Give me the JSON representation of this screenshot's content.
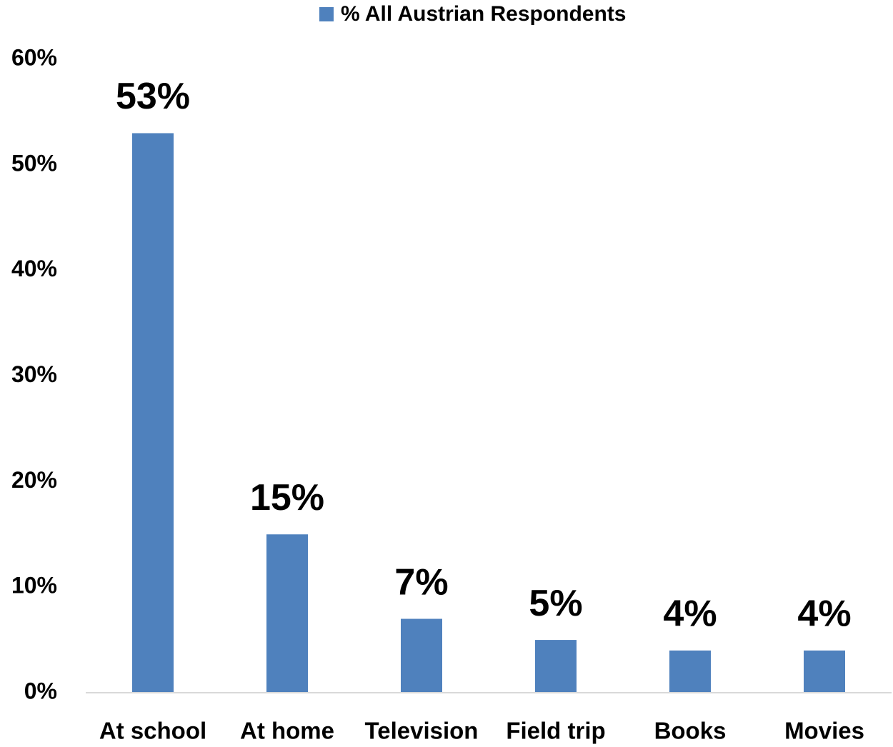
{
  "chart_data": {
    "type": "bar",
    "categories": [
      "At school",
      "At home",
      "Television",
      "Field trip",
      "Books",
      "Movies"
    ],
    "series": [
      {
        "name": "% All Austrian Respondents",
        "color": "#4f81bd",
        "values": [
          53,
          15,
          7,
          5,
          4,
          4
        ],
        "value_labels": [
          "53%",
          "15%",
          "7%",
          "5%",
          "4%",
          "4%"
        ]
      }
    ],
    "ylim": [
      0,
      60
    ],
    "yticks": [
      {
        "value": 0,
        "label": "0%"
      },
      {
        "value": 10,
        "label": "10%"
      },
      {
        "value": 20,
        "label": "20%"
      },
      {
        "value": 30,
        "label": "30%"
      },
      {
        "value": 40,
        "label": "40%"
      },
      {
        "value": 50,
        "label": "50%"
      },
      {
        "value": 60,
        "label": "60%"
      }
    ],
    "grid": false,
    "legend": "top"
  }
}
